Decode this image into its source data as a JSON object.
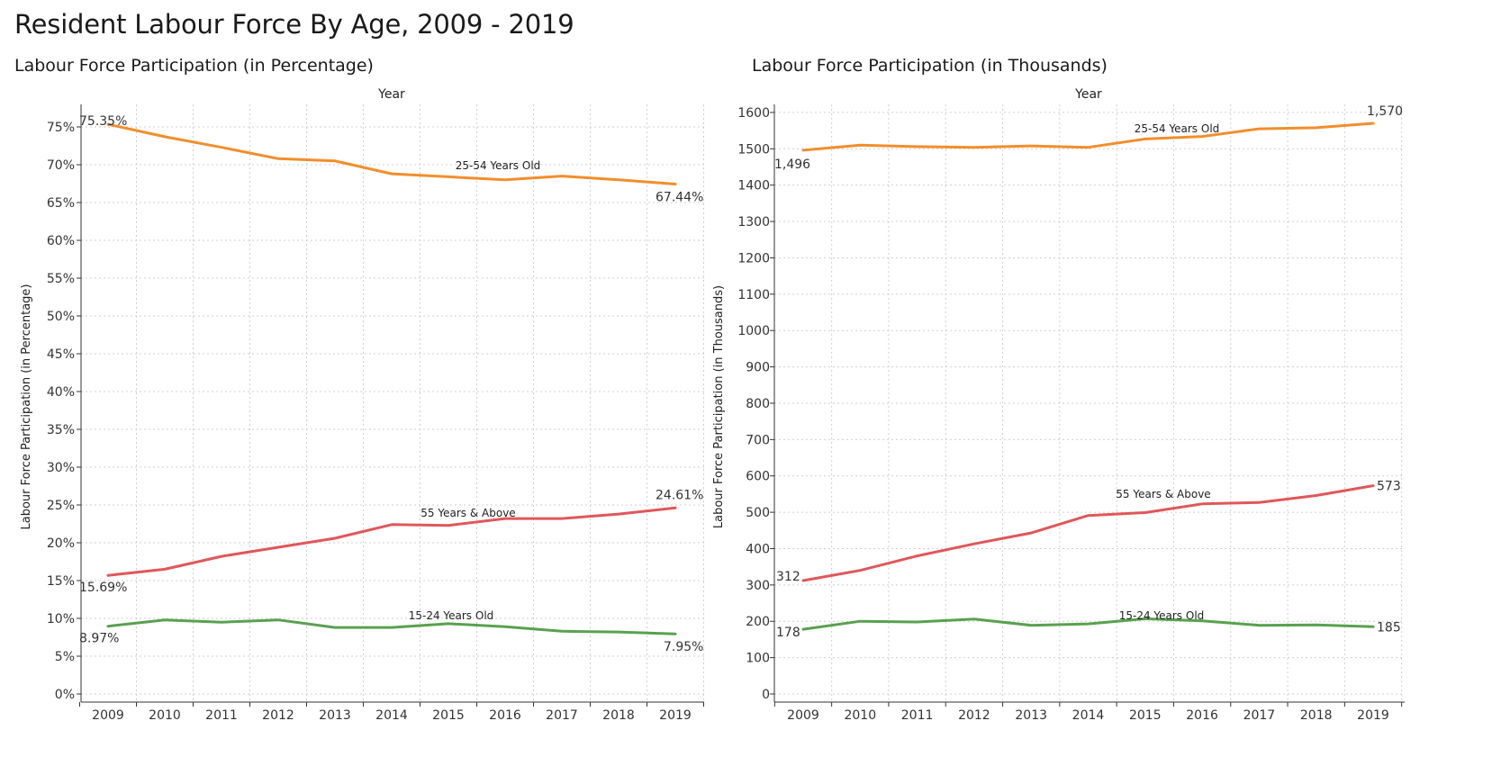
{
  "title": "Resident Labour Force By Age, 2009 - 2019",
  "chart_data": [
    {
      "type": "line",
      "title": "Labour Force Participation (in Percentage)",
      "xlabel": "Year",
      "ylabel": "Labour Force Participation (in Percentage)",
      "x": [
        "2009",
        "2010",
        "2011",
        "2012",
        "2013",
        "2014",
        "2015",
        "2016",
        "2017",
        "2018",
        "2019"
      ],
      "ylim": [
        0,
        79
      ],
      "yticks": [
        0,
        5,
        10,
        15,
        20,
        25,
        30,
        35,
        40,
        45,
        50,
        55,
        60,
        65,
        70,
        75
      ],
      "ytick_labels": [
        "0%",
        "5%",
        "10%",
        "15%",
        "20%",
        "25%",
        "30%",
        "35%",
        "40%",
        "45%",
        "50%",
        "55%",
        "60%",
        "65%",
        "70%",
        "75%"
      ],
      "grid": true,
      "series": [
        {
          "name": "25-54 Years Old",
          "color": "#f28e2b",
          "values": [
            75.35,
            73.7,
            72.3,
            70.8,
            70.5,
            68.8,
            68.4,
            68.0,
            68.5,
            68.0,
            67.44
          ],
          "start_label": "75.35%",
          "end_label": "67.44%"
        },
        {
          "name": "55 Years & Above",
          "color": "#e15759",
          "values": [
            15.69,
            16.5,
            18.2,
            19.4,
            20.6,
            22.4,
            22.3,
            23.2,
            23.2,
            23.8,
            24.61
          ],
          "start_label": "15.69%",
          "end_label": "24.61%"
        },
        {
          "name": "15-24 Years Old",
          "color": "#59a14f",
          "values": [
            8.97,
            9.8,
            9.5,
            9.8,
            8.8,
            8.8,
            9.3,
            8.9,
            8.3,
            8.2,
            7.95
          ],
          "start_label": "8.97%",
          "end_label": "7.95%"
        }
      ]
    },
    {
      "type": "line",
      "title": "Labour Force Participation (in Thousands)",
      "xlabel": "Year",
      "ylabel": "Labour Force Participation (in Thousands)",
      "x": [
        "2009",
        "2010",
        "2011",
        "2012",
        "2013",
        "2014",
        "2015",
        "2016",
        "2017",
        "2018",
        "2019"
      ],
      "ylim": [
        0,
        1640
      ],
      "yticks": [
        0,
        100,
        200,
        300,
        400,
        500,
        600,
        700,
        800,
        900,
        1000,
        1100,
        1200,
        1300,
        1400,
        1500,
        1600
      ],
      "ytick_labels": [
        "0",
        "100",
        "200",
        "300",
        "400",
        "500",
        "600",
        "700",
        "800",
        "900",
        "1000",
        "1100",
        "1200",
        "1300",
        "1400",
        "1500",
        "1600"
      ],
      "grid": true,
      "series": [
        {
          "name": "25-54 Years Old",
          "color": "#f28e2b",
          "values": [
            1496,
            1510,
            1506,
            1504,
            1508,
            1504,
            1527,
            1534,
            1555,
            1558,
            1570
          ],
          "start_label": "1,496",
          "end_label": "1,570"
        },
        {
          "name": "55 Years & Above",
          "color": "#e15759",
          "values": [
            312,
            340,
            380,
            413,
            443,
            491,
            499,
            523,
            527,
            546,
            573
          ],
          "start_label": "312",
          "end_label": "573"
        },
        {
          "name": "15-24 Years Old",
          "color": "#59a14f",
          "values": [
            178,
            200,
            198,
            206,
            189,
            193,
            207,
            201,
            189,
            190,
            185
          ],
          "start_label": "178",
          "end_label": "185"
        }
      ]
    }
  ]
}
